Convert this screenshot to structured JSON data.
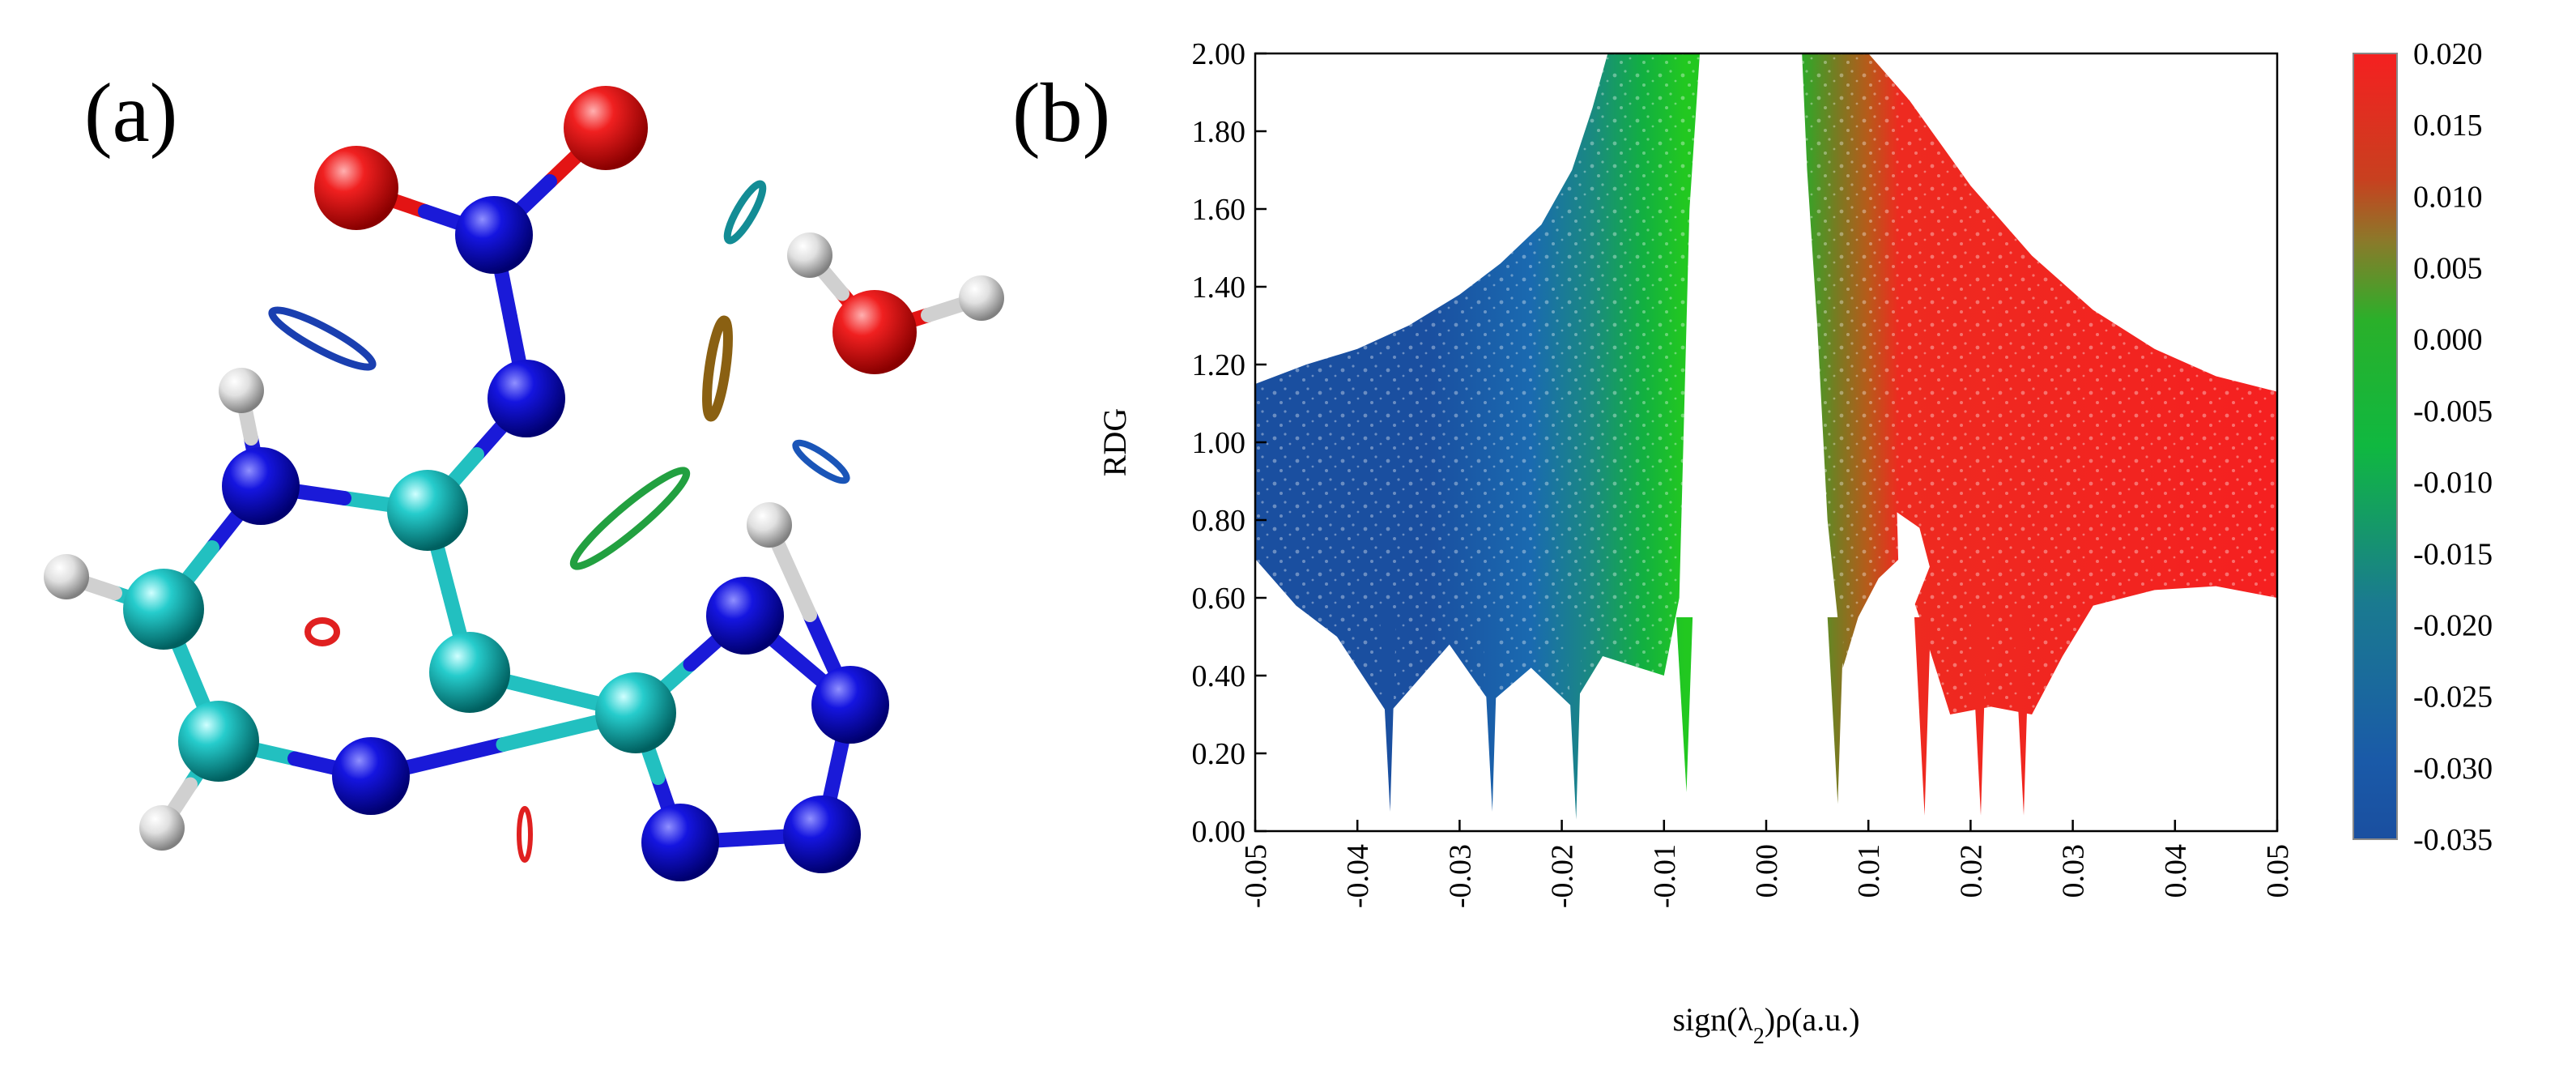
{
  "panels": {
    "a_label": "(a)",
    "b_label": "(b)"
  },
  "molecule": {
    "atom_colors": {
      "O": "#e31414",
      "N": "#1010d8",
      "C": "#22c8c8",
      "H": "#d8d8d8"
    },
    "atoms": [
      {
        "el": "O"
      },
      {
        "el": "O"
      },
      {
        "el": "N"
      },
      {
        "el": "N"
      },
      {
        "el": "C"
      },
      {
        "el": "N"
      },
      {
        "el": "C"
      },
      {
        "el": "C"
      },
      {
        "el": "C"
      },
      {
        "el": "N"
      },
      {
        "el": "C"
      },
      {
        "el": "N"
      },
      {
        "el": "N"
      },
      {
        "el": "N"
      },
      {
        "el": "N"
      },
      {
        "el": "H"
      },
      {
        "el": "H"
      },
      {
        "el": "H"
      },
      {
        "el": "H"
      },
      {
        "el": "O"
      },
      {
        "el": "H"
      },
      {
        "el": "H"
      }
    ],
    "bonds": [
      [
        0,
        2
      ],
      [
        1,
        2
      ],
      [
        2,
        3
      ],
      [
        3,
        4
      ],
      [
        4,
        5
      ],
      [
        4,
        7
      ],
      [
        5,
        6
      ],
      [
        6,
        10
      ],
      [
        10,
        9
      ],
      [
        9,
        8
      ],
      [
        8,
        7
      ],
      [
        7,
        8
      ],
      [
        8,
        11
      ],
      [
        11,
        12
      ],
      [
        12,
        13
      ],
      [
        13,
        14
      ],
      [
        14,
        8
      ],
      [
        5,
        15
      ],
      [
        6,
        16
      ],
      [
        10,
        17
      ],
      [
        12,
        18
      ],
      [
        19,
        20
      ],
      [
        19,
        21
      ]
    ]
  },
  "chart_data": {
    "type": "scatter",
    "xlabel": "sign(λ2)ρ(a.u.)",
    "ylabel": "RDG",
    "xlim": [
      -0.05,
      0.05
    ],
    "ylim": [
      0.0,
      2.0
    ],
    "x_ticks": [
      "-0.05",
      "-0.04",
      "-0.03",
      "-0.02",
      "-0.01",
      "0.00",
      "0.01",
      "0.02",
      "0.03",
      "0.04",
      "0.05"
    ],
    "y_ticks": [
      "0.00",
      "0.20",
      "0.40",
      "0.60",
      "0.80",
      "1.00",
      "1.20",
      "1.40",
      "1.60",
      "1.80",
      "2.00"
    ],
    "grid": false,
    "colorbar": {
      "ticks": [
        "0.020",
        "0.015",
        "0.010",
        "0.005",
        "0.000",
        "-0.005",
        "-0.010",
        "-0.015",
        "-0.020",
        "-0.025",
        "-0.030",
        "-0.035"
      ],
      "range": [
        -0.035,
        0.02
      ],
      "colors": [
        "#1a4fa0",
        "#11b83a",
        "#f52020"
      ]
    },
    "spikes": [
      {
        "x": -0.0368,
        "ymin": 0.05
      },
      {
        "x": -0.0268,
        "ymin": 0.05
      },
      {
        "x": -0.0186,
        "ymin": 0.03
      },
      {
        "x": -0.0078,
        "ymin": 0.1
      },
      {
        "x": 0.007,
        "ymin": 0.07
      },
      {
        "x": 0.0155,
        "ymin": 0.04
      },
      {
        "x": 0.021,
        "ymin": 0.04
      },
      {
        "x": 0.0252,
        "ymin": 0.04
      }
    ]
  }
}
